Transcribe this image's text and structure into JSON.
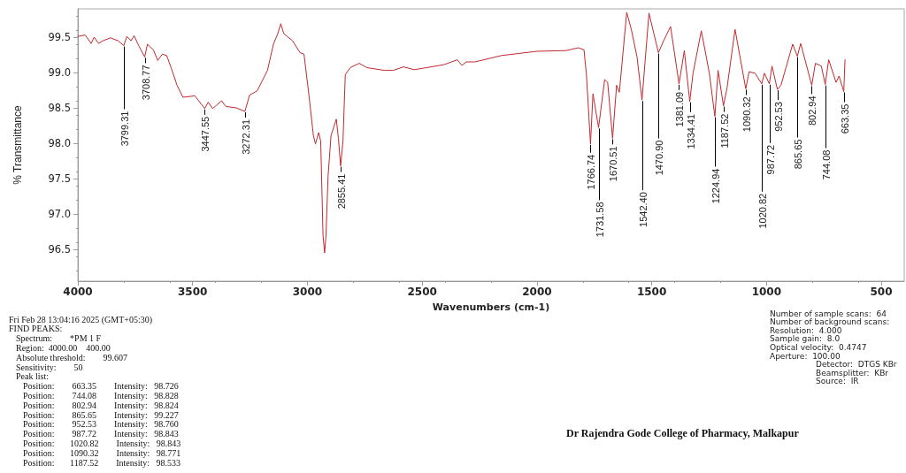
{
  "chart_data": {
    "type": "line",
    "xlabel": "Wavenumbers (cm-1)",
    "ylabel": "% Transmittance",
    "xlim": [
      4000,
      400
    ],
    "xticks": [
      4000,
      3500,
      3000,
      2500,
      2000,
      1500,
      1000,
      500
    ],
    "ylim": [
      96.05,
      99.9
    ],
    "yticks": [
      {
        "value": 96.5,
        "label": "96.5"
      },
      {
        "value": 97,
        "label": "97.0"
      },
      {
        "value": 97.5,
        "label": "97.5"
      },
      {
        "value": 98,
        "label": "98.0"
      },
      {
        "value": 98.5,
        "label": "98.5"
      },
      {
        "value": 99,
        "label": "99.0"
      },
      {
        "value": 99.5,
        "label": "99.5"
      }
    ],
    "grid": false,
    "marker": "none",
    "line_style": "solid",
    "series": [
      {
        "color": "#c0282d",
        "x": [
          4000,
          3968,
          3942,
          3929,
          3910,
          3890,
          3858,
          3826,
          3799.31,
          3787,
          3768,
          3755,
          3735,
          3708.77,
          3697,
          3671,
          3652,
          3632,
          3613,
          3594,
          3568,
          3542,
          3490,
          3447.55,
          3432,
          3413,
          3374,
          3355,
          3310,
          3272.31,
          3252,
          3219,
          3174,
          3148,
          3129,
          3116,
          3103,
          3065,
          3032,
          3015,
          2994,
          2974,
          2965,
          2951,
          2942,
          2932,
          2925,
          2919,
          2910,
          2897,
          2874,
          2865,
          2855.41,
          2845,
          2835,
          2813,
          2774,
          2742,
          2665,
          2626,
          2581,
          2535,
          2497,
          2406,
          2347,
          2327,
          2308,
          2270,
          2154,
          2000,
          1872,
          1820,
          1795,
          1784,
          1766.74,
          1756,
          1731.58,
          1705,
          1692,
          1670.51,
          1653,
          1641,
          1609,
          1589,
          1564,
          1542.4,
          1512,
          1470.9,
          1448,
          1418,
          1381.09,
          1358,
          1334.41,
          1320,
          1284,
          1249,
          1224.94,
          1211,
          1187.52,
          1172,
          1137,
          1090.32,
          1076,
          1050,
          1020.82,
          1009,
          987.72,
          976,
          952.53,
          937,
          915,
          886,
          865.65,
          851,
          802.94,
          787,
          761,
          744.08,
          729,
          697,
          684,
          663.35,
          658
        ],
        "values": [
          99.51,
          99.53,
          99.41,
          99.5,
          99.41,
          99.45,
          99.49,
          99.45,
          99.38,
          99.51,
          99.45,
          99.52,
          99.38,
          99.22,
          99.4,
          99.32,
          99.17,
          99.26,
          99.24,
          99.07,
          98.82,
          98.65,
          98.67,
          98.49,
          98.58,
          98.49,
          98.6,
          98.52,
          98.5,
          98.45,
          98.68,
          98.74,
          99.03,
          99.4,
          99.55,
          99.69,
          99.55,
          99.45,
          99.28,
          99.26,
          98.7,
          98.11,
          97.99,
          98.15,
          98.03,
          96.7,
          96.45,
          96.7,
          97.53,
          98.11,
          98.34,
          98.07,
          97.68,
          98.03,
          98.97,
          99.07,
          99.13,
          99.07,
          99.03,
          99.03,
          99.08,
          99.04,
          99.06,
          99.11,
          99.18,
          99.1,
          99.15,
          99.15,
          99.24,
          99.3,
          99.31,
          99.35,
          99.32,
          98.95,
          97.99,
          98.7,
          98.22,
          98.9,
          98.86,
          98.07,
          98.82,
          98.72,
          99.85,
          99.61,
          99.22,
          98.61,
          99.84,
          99.28,
          99.45,
          99.65,
          98.84,
          99.31,
          98.59,
          98.99,
          99.59,
          98.99,
          98.38,
          99.03,
          98.53,
          98.78,
          99.61,
          98.77,
          99.01,
          98.99,
          98.84,
          98.99,
          98.84,
          99.09,
          98.76,
          98.82,
          99.07,
          99.4,
          99.23,
          99.41,
          98.82,
          99.13,
          99.09,
          98.83,
          99.18,
          98.86,
          98.95,
          98.73,
          99.18
        ]
      }
    ],
    "annotations": [
      {
        "text": "3799.31",
        "x": 3799.31,
        "y": 99.38
      },
      {
        "text": "3708.77",
        "x": 3708.77,
        "y": 99.22
      },
      {
        "text": "3447.55",
        "x": 3447.55,
        "y": 98.49
      },
      {
        "text": "3272.31",
        "x": 3272.31,
        "y": 98.45
      },
      {
        "text": "2855.41",
        "x": 2855.41,
        "y": 97.68
      },
      {
        "text": "1766.74",
        "x": 1766.74,
        "y": 97.99
      },
      {
        "text": "1731.58",
        "x": 1731.58,
        "y": 98.22
      },
      {
        "text": "1670.51",
        "x": 1670.51,
        "y": 98.07
      },
      {
        "text": "1542.40",
        "x": 1542.4,
        "y": 98.61
      },
      {
        "text": "1470.90",
        "x": 1470.9,
        "y": 99.28
      },
      {
        "text": "1381.09",
        "x": 1381.09,
        "y": 98.84
      },
      {
        "text": "1334.41",
        "x": 1334.41,
        "y": 98.59
      },
      {
        "text": "1224.94",
        "x": 1224.94,
        "y": 98.38
      },
      {
        "text": "1187.52",
        "x": 1187.52,
        "y": 98.53
      },
      {
        "text": "1090.32",
        "x": 1090.32,
        "y": 98.77
      },
      {
        "text": "1020.82",
        "x": 1020.82,
        "y": 98.84
      },
      {
        "text": "987.72",
        "x": 987.72,
        "y": 98.84
      },
      {
        "text": "952.53",
        "x": 952.53,
        "y": 98.76
      },
      {
        "text": "865.65",
        "x": 865.65,
        "y": 99.23
      },
      {
        "text": "802.94",
        "x": 802.94,
        "y": 98.82
      },
      {
        "text": "744.08",
        "x": 744.08,
        "y": 98.83
      },
      {
        "text": "663.35",
        "x": 663.35,
        "y": 98.73
      },
      "Fri Feb 28 13:04:16 2025 (GMT+05:30)",
      "FIND PEAKS:",
      "Spectrum:        *PM 1 F",
      "Region:  4000.00    400.00",
      "Absolute threshold:        99.607",
      "Sensitivity:        50",
      "Peak list:",
      "Position:        663.35        Intensity:   98.726",
      "Position:        744.08        Intensity:   98.828",
      "Position:        802.94        Intensity:   98.824",
      "Position:        865.65        Intensity:   99.227",
      "Position:        952.53        Intensity:   98.760",
      "Position:        987.72        Intensity:   98.843",
      "Position:       1020.82        Intensity:   98.843",
      "Position:       1090.32        Intensity:   98.771",
      "Position:       1187.52        Intensity:   98.533",
      "Number of sample scans:  64",
      "Number of background scans:",
      "Resolution:  4.000",
      "Sample gain:  8.0",
      "Optical velocity:  0.4747",
      "Aperture:  100.00",
      "Detector:  DTGS KBr",
      "Beamsplitter:  KBr",
      "Source:  IR",
      "Dr Rajendra Gode College of Pharmacy, Malkapur"
    ]
  }
}
